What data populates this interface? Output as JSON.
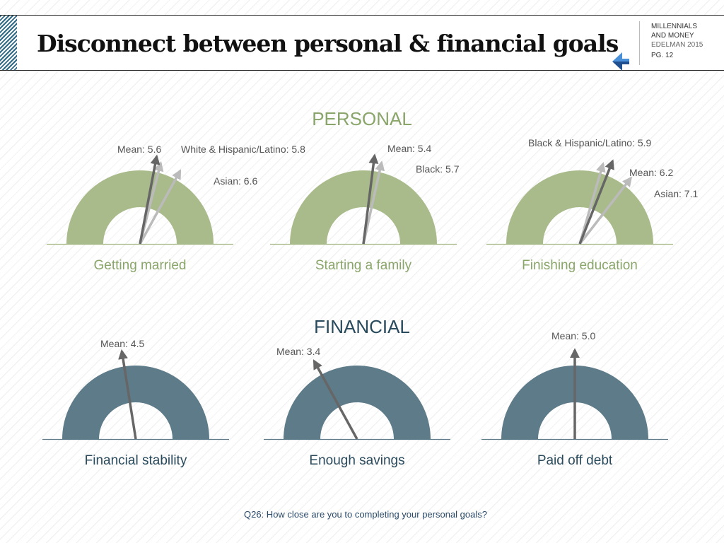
{
  "header": {
    "title": "Disconnect between personal & financial goals",
    "brand_line1": "MILLENNIALS",
    "brand_line2": "AND MONEY",
    "brand_line3": "EDELMAN 2015",
    "page_label": "PG. 12"
  },
  "colors": {
    "personal": "#a9bb8b",
    "personal_text": "#8aa56a",
    "financial": "#5e7b89",
    "financial_text": "#294a5c",
    "mean_arrow": "#666666",
    "group_arrow": "#bbbbbb",
    "footnote": "#2a4a6a"
  },
  "chart_data": {
    "type": "gauge",
    "scale": [
      0,
      10
    ],
    "sections": [
      {
        "title": "PERSONAL",
        "gauges": [
          {
            "label": "Getting married",
            "markers": [
              {
                "text": "Mean: 5.6",
                "value": 5.6,
                "kind": "mean"
              },
              {
                "text": "White & Hispanic/Latino: 5.8",
                "value": 5.8,
                "kind": "group"
              },
              {
                "text": "Asian: 6.6",
                "value": 6.6,
                "kind": "group"
              }
            ]
          },
          {
            "label": "Starting a family",
            "markers": [
              {
                "text": "Mean: 5.4",
                "value": 5.4,
                "kind": "mean"
              },
              {
                "text": "Black: 5.7",
                "value": 5.7,
                "kind": "group"
              }
            ]
          },
          {
            "label": "Finishing education",
            "markers": [
              {
                "text": "Black & Hispanic/Latino: 5.9",
                "value": 5.9,
                "kind": "group"
              },
              {
                "text": "Mean: 6.2",
                "value": 6.2,
                "kind": "mean"
              },
              {
                "text": "Asian: 7.1",
                "value": 7.1,
                "kind": "group"
              }
            ]
          }
        ]
      },
      {
        "title": "FINANCIAL",
        "gauges": [
          {
            "label": "Financial stability",
            "markers": [
              {
                "text": "Mean: 4.5",
                "value": 4.5,
                "kind": "mean"
              }
            ]
          },
          {
            "label": "Enough savings",
            "markers": [
              {
                "text": "Mean: 3.4",
                "value": 3.4,
                "kind": "mean"
              }
            ]
          },
          {
            "label": "Paid off debt",
            "markers": [
              {
                "text": "Mean: 5.0",
                "value": 5.0,
                "kind": "mean"
              }
            ]
          }
        ]
      }
    ]
  },
  "footnote": "Q26: How close are you to completing your personal goals?"
}
